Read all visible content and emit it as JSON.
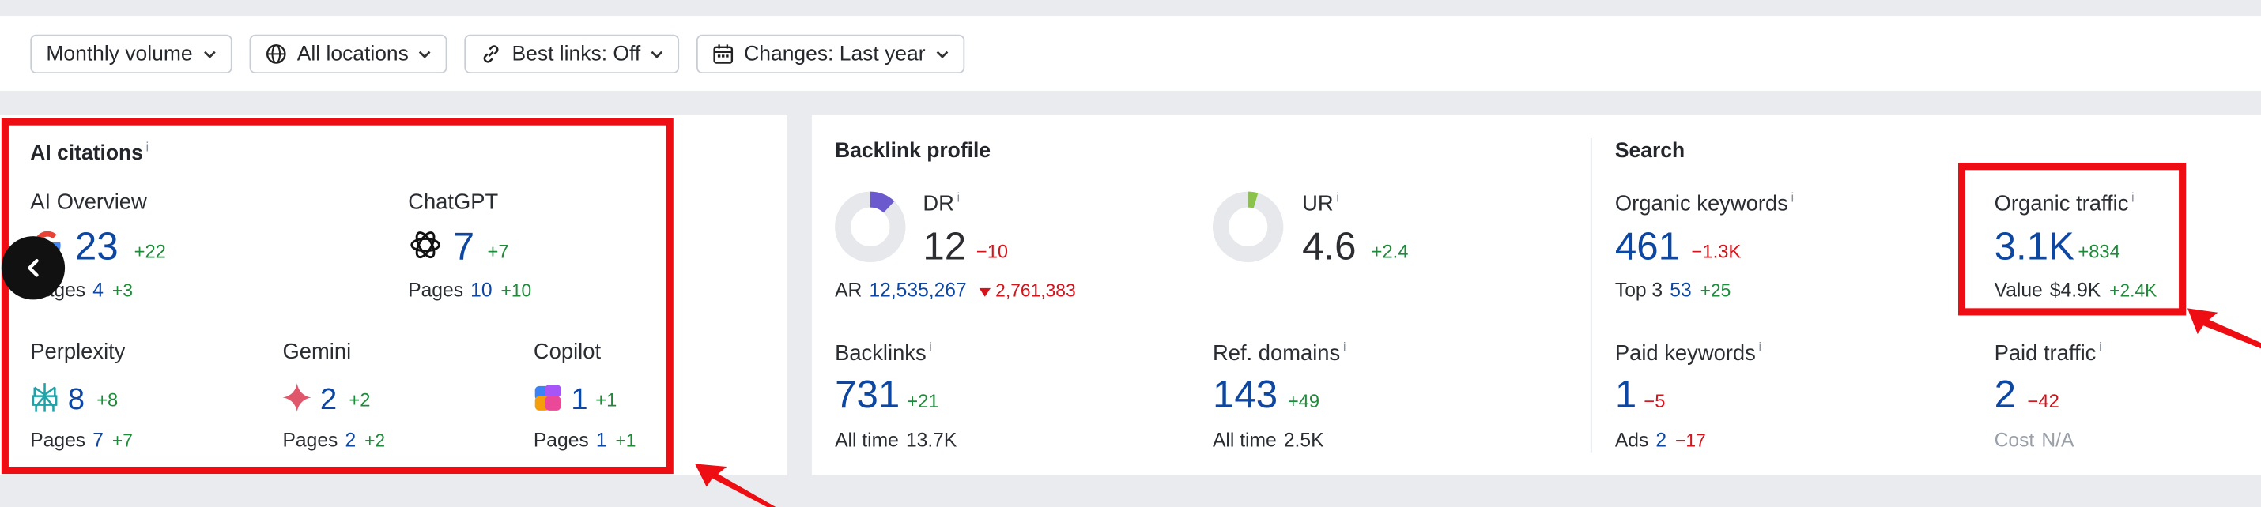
{
  "filters": [
    {
      "label": "Monthly volume",
      "icon": "none"
    },
    {
      "label": "All locations",
      "icon": "globe-icon"
    },
    {
      "label": "Best links: Off",
      "icon": "link-icon"
    },
    {
      "label": "Changes: Last year",
      "icon": "calendar-icon"
    }
  ],
  "ai": {
    "title": "AI citations",
    "info": "i",
    "overview": {
      "label": "AI Overview",
      "value": "23",
      "delta": "+22",
      "pages_label": "Pages",
      "pages": "4",
      "pages_delta": "+3"
    },
    "chatgpt": {
      "label": "ChatGPT",
      "value": "7",
      "delta": "+7",
      "pages_label": "Pages",
      "pages": "10",
      "pages_delta": "+10"
    },
    "perplexity": {
      "label": "Perplexity",
      "value": "8",
      "delta": "+8",
      "pages_label": "Pages",
      "pages": "7",
      "pages_delta": "+7"
    },
    "gemini": {
      "label": "Gemini",
      "value": "2",
      "delta": "+2",
      "pages_label": "Pages",
      "pages": "2",
      "pages_delta": "+2"
    },
    "copilot": {
      "label": "Copilot",
      "value": "1",
      "delta": "+1",
      "pages_label": "Pages",
      "pages": "1",
      "pages_delta": "+1"
    }
  },
  "backlink": {
    "title": "Backlink profile",
    "dr": {
      "label": "DR",
      "info": "i",
      "value": "12",
      "delta": "−10",
      "gauge_fraction": 0.12
    },
    "ar": {
      "label": "AR",
      "value": "12,535,267",
      "delta": "2,761,383"
    },
    "ur": {
      "label": "UR",
      "info": "i",
      "value": "4.6",
      "delta": "+2.4",
      "gauge_fraction": 0.046
    },
    "backlinks": {
      "label": "Backlinks",
      "info": "i",
      "value": "731",
      "delta": "+21",
      "sub_label": "All time",
      "sub_value": "13.7K"
    },
    "refdomains": {
      "label": "Ref. domains",
      "info": "i",
      "value": "143",
      "delta": "+49",
      "sub_label": "All time",
      "sub_value": "2.5K"
    }
  },
  "search": {
    "title": "Search",
    "org_kw": {
      "label": "Organic keywords",
      "info": "i",
      "value": "461",
      "delta": "−1.3K",
      "sub_label": "Top 3",
      "sub_value": "53",
      "sub_delta": "+25"
    },
    "org_traffic": {
      "label": "Organic traffic",
      "info": "i",
      "value": "3.1K",
      "delta": "+834",
      "sub_label": "Value",
      "sub_value": "$4.9K",
      "sub_delta": "+2.4K"
    },
    "paid_kw": {
      "label": "Paid keywords",
      "info": "i",
      "value": "1",
      "delta": "−5",
      "sub_label": "Ads",
      "sub_value": "2",
      "sub_delta": "−17"
    },
    "paid_traffic": {
      "label": "Paid traffic",
      "info": "i",
      "value": "2",
      "delta": "−42",
      "sub_label": "Cost",
      "sub_value": "N/A"
    }
  },
  "colors": {
    "highlight": "#ee0d12",
    "metric_blue": "#0d47a1",
    "positive": "#1e8a3a",
    "negative": "#d3141b",
    "dr_gauge": "#6a5acd",
    "ur_gauge": "#8bc34a"
  }
}
